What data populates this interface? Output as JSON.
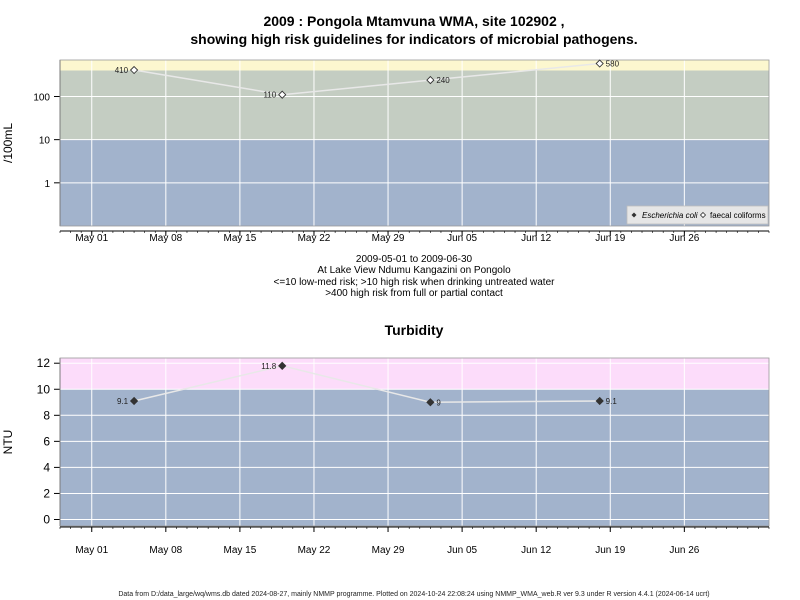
{
  "chart_data": [
    {
      "type": "scatter",
      "title_line1": "2009 : Pongola Mtamvuna WMA, site 102902 ,",
      "title_line2": "showing high risk guidelines for indicators of microbial pathogens.",
      "ylabel": "/100mL",
      "y_scale": "log",
      "y_ticks": [
        "1",
        "10",
        "100"
      ],
      "x_ticks": [
        "May 01",
        "May 08",
        "May 15",
        "May 22",
        "May 29",
        "Jun 05",
        "Jun 12",
        "Jun 19",
        "Jun 26"
      ],
      "x_start": "2009-04-28",
      "x_end": "2009-07-04",
      "bands": [
        {
          "from": 0.1,
          "to": 10,
          "color": "#a2b3cc"
        },
        {
          "from": 10,
          "to": 400,
          "color": "#c4cdc2"
        },
        {
          "from": 400,
          "to": 700,
          "color": "#fcf7cf"
        }
      ],
      "series": [
        {
          "name": "faecal coliforms",
          "marker": "open-diamond",
          "points": [
            {
              "x": "2009-05-05",
              "y": 410,
              "label": "410"
            },
            {
              "x": "2009-05-19",
              "y": 110,
              "label": "110"
            },
            {
              "x": "2009-06-02",
              "y": 240,
              "label": "240"
            },
            {
              "x": "2009-06-18",
              "y": 580,
              "label": "580"
            }
          ]
        },
        {
          "name": "Escherichia coli",
          "marker": "filled-diamond",
          "points": []
        }
      ],
      "legend_position": "bottom-right",
      "subtitle_lines": [
        "2009-05-01 to 2009-06-30",
        "At Lake View Ndumu Kangazini on Pongolo",
        "<=10 low-med risk; >10 high risk when drinking untreated water",
        ">400 high risk from full or partial contact"
      ]
    },
    {
      "type": "scatter",
      "title": "Turbidity",
      "ylabel": "NTU",
      "y_ticks": [
        "0",
        "2",
        "4",
        "6",
        "8",
        "10",
        "12"
      ],
      "ylim": [
        -0.5,
        12.4
      ],
      "x_ticks": [
        "May 01",
        "May 08",
        "May 15",
        "May 22",
        "May 29",
        "Jun 05",
        "Jun 12",
        "Jun 19",
        "Jun 26"
      ],
      "x_start": "2009-04-28",
      "x_end": "2009-07-04",
      "bands": [
        {
          "from": -0.5,
          "to": 10,
          "color": "#a2b3cc"
        },
        {
          "from": 10,
          "to": 12.4,
          "color": "#fcdcfa"
        }
      ],
      "series": [
        {
          "marker": "filled-diamond",
          "points": [
            {
              "x": "2009-05-05",
              "y": 9.1,
              "label": "9.1"
            },
            {
              "x": "2009-05-19",
              "y": 11.8,
              "label": "11.8"
            },
            {
              "x": "2009-06-02",
              "y": 9,
              "label": "9"
            },
            {
              "x": "2009-06-18",
              "y": 9.1,
              "label": "9.1"
            }
          ]
        }
      ]
    }
  ],
  "footer": "Data from D:/data_large/wq/wms.db dated 2024-08-27, mainly NMMP programme. Plotted on 2024-10-24 22:08:24 using NMMP_WMA_web.R ver 9.3 under R version 4.4.1 (2024-06-14 ucrt)"
}
